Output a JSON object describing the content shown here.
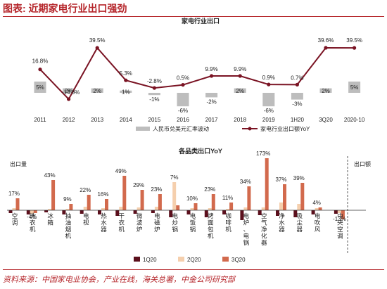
{
  "figure": {
    "title": "图表: 近期家电行业出口强劲",
    "source": "资料来源：中国家电业协会，产业在线，海关总署，中金公司研究部"
  },
  "colors": {
    "line": "#7a1323",
    "rmb_bar": "#bdbdbd",
    "q1": "#5b0f1c",
    "q2": "#f5cfad",
    "q3": "#d26a4d",
    "accent": "#b5252a"
  },
  "chart_data": [
    {
      "type": "line",
      "title": "家电行业出口",
      "categories": [
        "2011",
        "2012",
        "2013",
        "2014",
        "2015",
        "2016",
        "2017",
        "2018",
        "2019",
        "1H20",
        "3Q20",
        "2020-10"
      ],
      "series": [
        {
          "name": "家电行业出口额YoY",
          "kind": "line",
          "values": [
            16.8,
            -14.6,
            39.5,
            5.3,
            -2.8,
            0.5,
            9.9,
            9.9,
            0.9,
            0.7,
            39.6,
            39.5
          ],
          "labels": [
            "16.8%",
            "-14.6%",
            "39.5%",
            "5.3%",
            "-2.8%",
            "0.5%",
            "9.9%",
            "9.9%",
            "0.9%",
            "0.7%",
            "39.6%",
            "39.5%"
          ]
        },
        {
          "name": "人民币兑美元汇率波动",
          "kind": "bar",
          "values": [
            5,
            2,
            2,
            1,
            -1,
            -6,
            -2,
            2,
            -6,
            -3,
            2,
            5
          ],
          "labels": [
            "5%",
            "2%",
            "2%",
            "1%",
            "-1%",
            "-6%",
            "-2%",
            "2%",
            "-6%",
            "-3%",
            "2%",
            "5%"
          ]
        }
      ],
      "legend_position": "bottom"
    },
    {
      "type": "bar",
      "title": "各品类出口YoY",
      "left_group_label": "出口量",
      "right_group_label": "出口额",
      "categories": [
        "空调",
        "洗衣机",
        "冰箱",
        "抽油烟机",
        "电视",
        "热水器",
        "干衣机",
        "微波炉",
        "电磁炉",
        "电炒锅",
        "电饭锅",
        "烤面包机",
        "咖啡机",
        "电炉、电锅",
        "空气净化器",
        "净水器",
        "吸尘器",
        "电吹风",
        "中央空调"
      ],
      "series": [
        {
          "name": "1Q20",
          "values": [
            -4,
            -6,
            -3,
            -6,
            -5,
            -6,
            -8,
            -5,
            -4,
            -10,
            -6,
            -10,
            -6,
            -14,
            -7,
            -8,
            -10,
            -6,
            -5
          ]
        },
        {
          "name": "2Q20",
          "values": [
            3,
            -5,
            2,
            2,
            5,
            3,
            5,
            4,
            5,
            40,
            3,
            3,
            2,
            4,
            4,
            11,
            9,
            3,
            -4
          ]
        },
        {
          "name": "3Q20",
          "values": [
            17,
            -4,
            43,
            9,
            22,
            16,
            49,
            29,
            23,
            7,
            10,
            23,
            11,
            34,
            173,
            37,
            39,
            4,
            -13
          ]
        }
      ],
      "value_labels": [
        "17%",
        "-4%",
        "43%",
        "9%",
        "22%",
        "16%",
        "49%",
        "29%",
        "23%",
        "7%",
        "10%",
        "23%",
        "11%",
        "34%",
        "173%",
        "37%",
        "39%",
        "4%",
        "-13%"
      ],
      "legend_position": "bottom"
    }
  ]
}
